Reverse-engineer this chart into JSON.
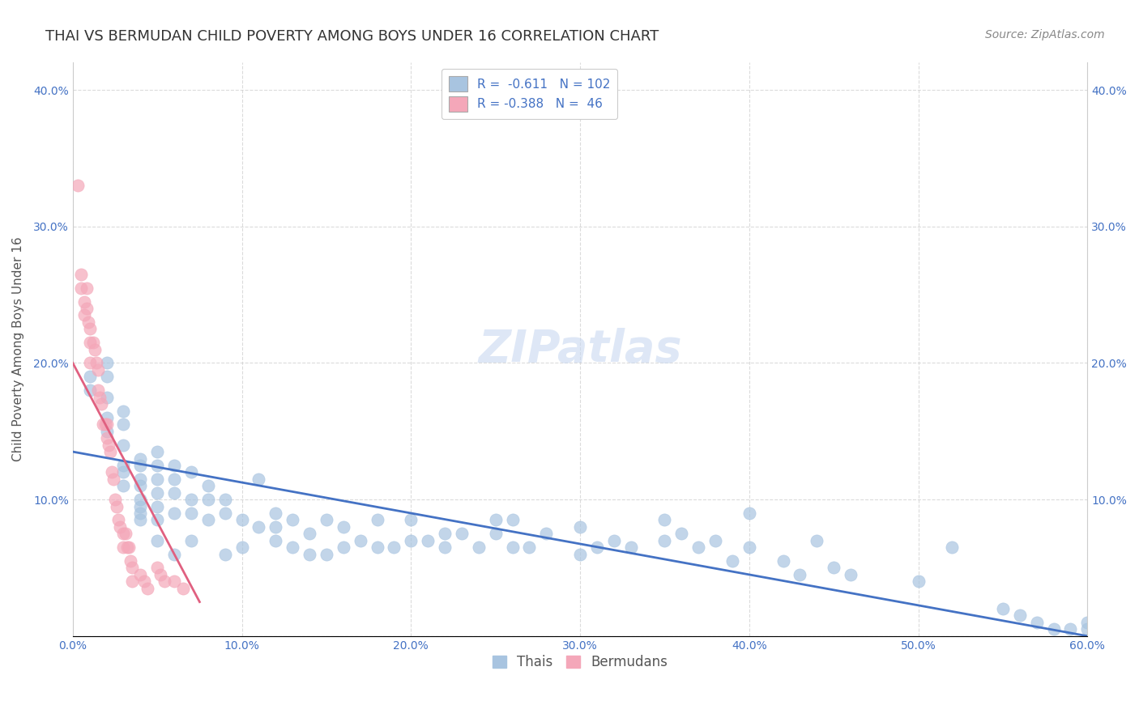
{
  "title": "THAI VS BERMUDAN CHILD POVERTY AMONG BOYS UNDER 16 CORRELATION CHART",
  "source": "Source: ZipAtlas.com",
  "ylabel": "Child Poverty Among Boys Under 16",
  "xlabel": "",
  "xlim": [
    0.0,
    0.6
  ],
  "ylim": [
    0.0,
    0.42
  ],
  "xticks": [
    0.0,
    0.1,
    0.2,
    0.3,
    0.4,
    0.5,
    0.6
  ],
  "yticks": [
    0.0,
    0.1,
    0.2,
    0.3,
    0.4
  ],
  "xtick_labels": [
    "0.0%",
    "10.0%",
    "20.0%",
    "30.0%",
    "40.0%",
    "50.0%",
    "60.0%"
  ],
  "ytick_labels": [
    "",
    "10.0%",
    "20.0%",
    "30.0%",
    "40.0%"
  ],
  "legend_r1": "R =  -0.611",
  "legend_n1": "N = 102",
  "legend_r2": "R = -0.388",
  "legend_n2": "N =  46",
  "blue_color": "#a8c4e0",
  "pink_color": "#f4a7b9",
  "blue_line_color": "#4472c4",
  "pink_line_color": "#e06080",
  "watermark": "ZIPatlas",
  "blue_scatter_x": [
    0.01,
    0.01,
    0.02,
    0.02,
    0.02,
    0.02,
    0.02,
    0.03,
    0.03,
    0.03,
    0.03,
    0.03,
    0.03,
    0.04,
    0.04,
    0.04,
    0.04,
    0.04,
    0.04,
    0.04,
    0.04,
    0.05,
    0.05,
    0.05,
    0.05,
    0.05,
    0.05,
    0.05,
    0.06,
    0.06,
    0.06,
    0.06,
    0.06,
    0.07,
    0.07,
    0.07,
    0.07,
    0.08,
    0.08,
    0.08,
    0.09,
    0.09,
    0.09,
    0.1,
    0.1,
    0.11,
    0.11,
    0.12,
    0.12,
    0.12,
    0.13,
    0.13,
    0.14,
    0.14,
    0.15,
    0.15,
    0.16,
    0.16,
    0.17,
    0.18,
    0.18,
    0.19,
    0.2,
    0.2,
    0.21,
    0.22,
    0.22,
    0.23,
    0.24,
    0.25,
    0.25,
    0.26,
    0.26,
    0.27,
    0.28,
    0.3,
    0.3,
    0.31,
    0.32,
    0.33,
    0.35,
    0.35,
    0.36,
    0.37,
    0.38,
    0.39,
    0.4,
    0.4,
    0.42,
    0.43,
    0.44,
    0.45,
    0.46,
    0.5,
    0.52,
    0.55,
    0.56,
    0.57,
    0.58,
    0.59,
    0.6,
    0.6
  ],
  "blue_scatter_y": [
    0.19,
    0.18,
    0.2,
    0.19,
    0.175,
    0.16,
    0.15,
    0.165,
    0.155,
    0.14,
    0.125,
    0.12,
    0.11,
    0.13,
    0.125,
    0.115,
    0.11,
    0.1,
    0.095,
    0.09,
    0.085,
    0.135,
    0.125,
    0.115,
    0.105,
    0.095,
    0.085,
    0.07,
    0.125,
    0.115,
    0.105,
    0.09,
    0.06,
    0.12,
    0.1,
    0.09,
    0.07,
    0.11,
    0.1,
    0.085,
    0.1,
    0.09,
    0.06,
    0.085,
    0.065,
    0.115,
    0.08,
    0.09,
    0.08,
    0.07,
    0.085,
    0.065,
    0.075,
    0.06,
    0.085,
    0.06,
    0.08,
    0.065,
    0.07,
    0.085,
    0.065,
    0.065,
    0.085,
    0.07,
    0.07,
    0.075,
    0.065,
    0.075,
    0.065,
    0.085,
    0.075,
    0.085,
    0.065,
    0.065,
    0.075,
    0.08,
    0.06,
    0.065,
    0.07,
    0.065,
    0.085,
    0.07,
    0.075,
    0.065,
    0.07,
    0.055,
    0.09,
    0.065,
    0.055,
    0.045,
    0.07,
    0.05,
    0.045,
    0.04,
    0.065,
    0.02,
    0.015,
    0.01,
    0.005,
    0.005,
    0.01,
    0.005
  ],
  "pink_scatter_x": [
    0.003,
    0.005,
    0.005,
    0.007,
    0.007,
    0.008,
    0.008,
    0.009,
    0.01,
    0.01,
    0.01,
    0.012,
    0.013,
    0.014,
    0.015,
    0.015,
    0.016,
    0.017,
    0.018,
    0.019,
    0.02,
    0.02,
    0.021,
    0.022,
    0.023,
    0.024,
    0.025,
    0.026,
    0.027,
    0.028,
    0.03,
    0.03,
    0.031,
    0.032,
    0.033,
    0.034,
    0.035,
    0.035,
    0.04,
    0.042,
    0.044,
    0.05,
    0.052,
    0.054,
    0.06,
    0.065
  ],
  "pink_scatter_y": [
    0.33,
    0.265,
    0.255,
    0.245,
    0.235,
    0.255,
    0.24,
    0.23,
    0.225,
    0.215,
    0.2,
    0.215,
    0.21,
    0.2,
    0.195,
    0.18,
    0.175,
    0.17,
    0.155,
    0.155,
    0.155,
    0.145,
    0.14,
    0.135,
    0.12,
    0.115,
    0.1,
    0.095,
    0.085,
    0.08,
    0.075,
    0.065,
    0.075,
    0.065,
    0.065,
    0.055,
    0.05,
    0.04,
    0.045,
    0.04,
    0.035,
    0.05,
    0.045,
    0.04,
    0.04,
    0.035
  ],
  "blue_trendline_x": [
    0.0,
    0.6
  ],
  "blue_trendline_y": [
    0.135,
    0.0
  ],
  "pink_trendline_x": [
    0.0,
    0.075
  ],
  "pink_trendline_y": [
    0.2,
    0.025
  ],
  "title_fontsize": 13,
  "source_fontsize": 10,
  "axis_label_fontsize": 11,
  "tick_fontsize": 10,
  "legend_fontsize": 11,
  "watermark_fontsize": 40,
  "background_color": "#ffffff",
  "grid_color": "#cccccc",
  "tick_color": "#4472c4",
  "title_color": "#333333",
  "legend_text_color": "#4472c4"
}
